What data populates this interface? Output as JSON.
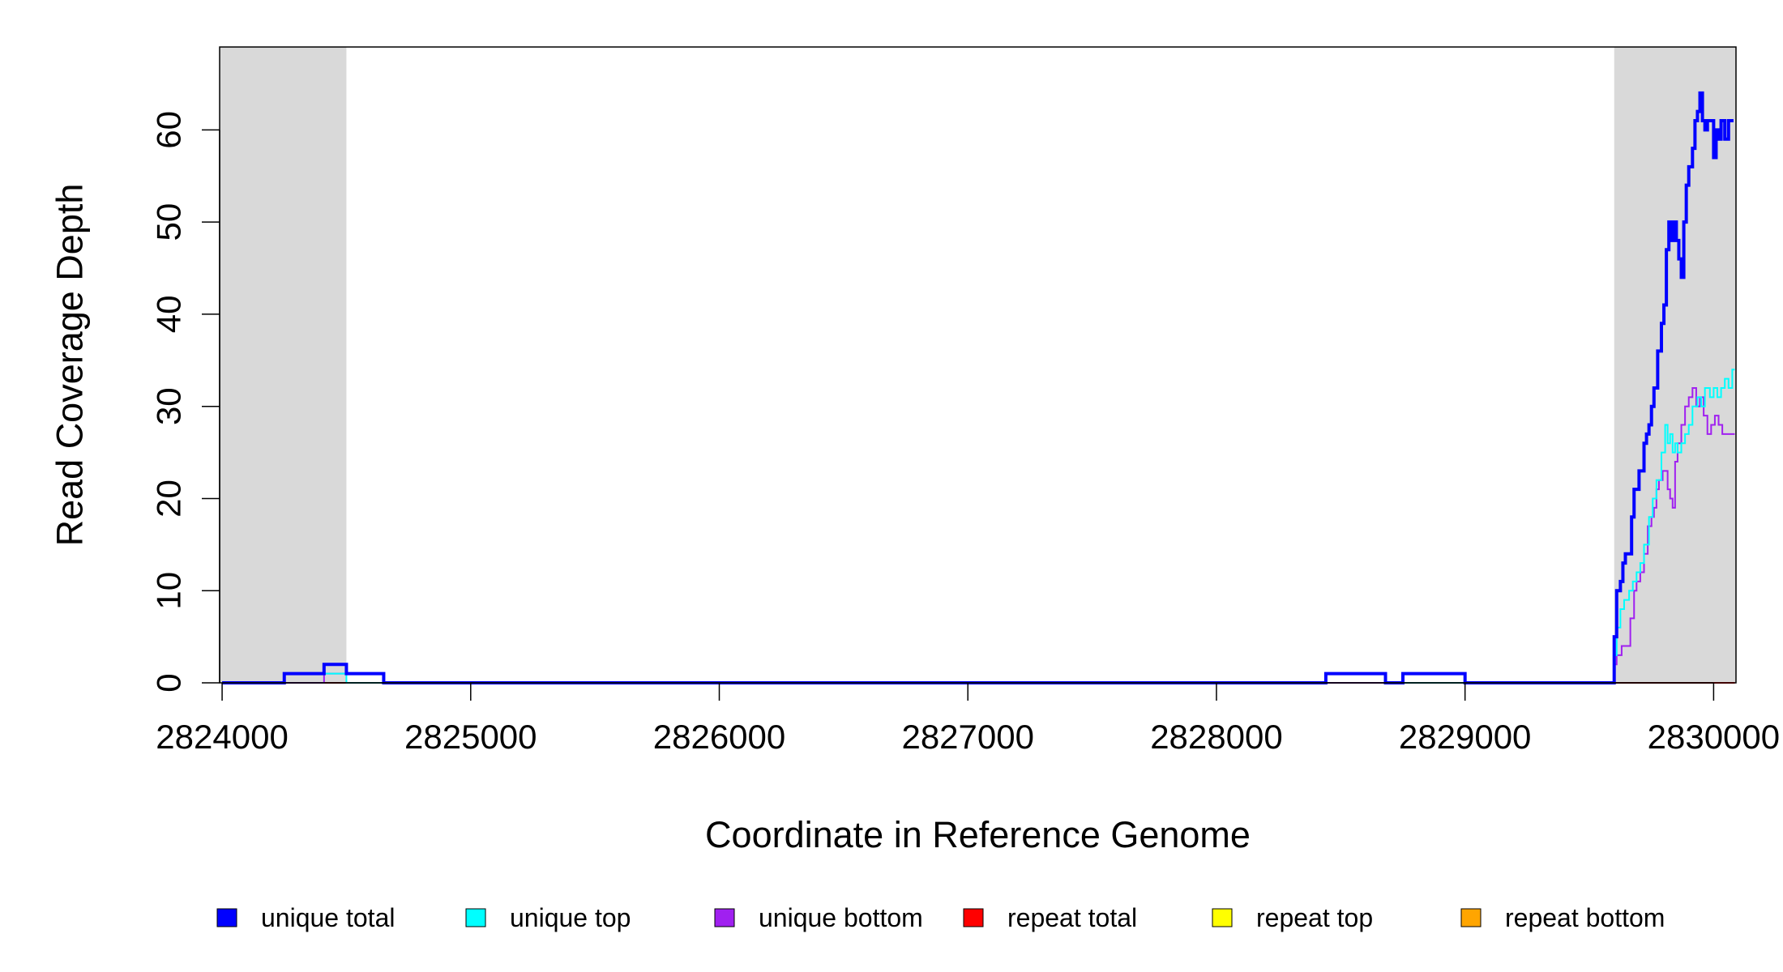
{
  "chart_data": {
    "type": "line",
    "title": "",
    "xlabel": "Coordinate in Reference Genome",
    "ylabel": "Read Coverage Depth",
    "xlim": [
      2823990,
      2830090
    ],
    "ylim": [
      0,
      69
    ],
    "x_ticks": [
      2824000,
      2825000,
      2826000,
      2827000,
      2828000,
      2829000,
      2830000
    ],
    "x_tick_labels": [
      "2824000",
      "2825000",
      "2826000",
      "2827000",
      "2828000",
      "2829000",
      "2830000"
    ],
    "y_ticks": [
      0,
      10,
      20,
      30,
      40,
      50,
      60
    ],
    "y_tick_labels": [
      "0",
      "10",
      "20",
      "30",
      "40",
      "50",
      "60"
    ],
    "shaded_regions": [
      [
        2823990,
        2824500
      ],
      [
        2829600,
        2830090
      ]
    ],
    "shaded_color": "#d9d9d9",
    "legend_position": "bottom",
    "series": [
      {
        "name": "unique total",
        "color": "#0000ff",
        "points": [
          [
            2824000,
            0
          ],
          [
            2824250,
            1
          ],
          [
            2824410,
            2
          ],
          [
            2824500,
            1
          ],
          [
            2824650,
            0
          ],
          [
            2828440,
            1
          ],
          [
            2828680,
            0
          ],
          [
            2828750,
            1
          ],
          [
            2829000,
            0
          ],
          [
            2829600,
            5
          ],
          [
            2829610,
            10
          ],
          [
            2829625,
            11
          ],
          [
            2829635,
            13
          ],
          [
            2829645,
            14
          ],
          [
            2829670,
            18
          ],
          [
            2829680,
            21
          ],
          [
            2829700,
            23
          ],
          [
            2829720,
            26
          ],
          [
            2829730,
            27
          ],
          [
            2829740,
            28
          ],
          [
            2829750,
            30
          ],
          [
            2829760,
            32
          ],
          [
            2829775,
            36
          ],
          [
            2829790,
            39
          ],
          [
            2829800,
            41
          ],
          [
            2829810,
            47
          ],
          [
            2829820,
            50
          ],
          [
            2829830,
            48
          ],
          [
            2829840,
            50
          ],
          [
            2829850,
            48
          ],
          [
            2829860,
            46
          ],
          [
            2829870,
            44
          ],
          [
            2829880,
            50
          ],
          [
            2829890,
            54
          ],
          [
            2829900,
            56
          ],
          [
            2829915,
            58
          ],
          [
            2829925,
            61
          ],
          [
            2829935,
            62
          ],
          [
            2829945,
            64
          ],
          [
            2829955,
            61
          ],
          [
            2829965,
            60
          ],
          [
            2829975,
            61
          ],
          [
            2829990,
            61
          ],
          [
            2830000,
            57
          ],
          [
            2830010,
            60
          ],
          [
            2830020,
            59
          ],
          [
            2830030,
            61
          ],
          [
            2830045,
            59
          ],
          [
            2830060,
            61
          ],
          [
            2830080,
            61
          ]
        ]
      },
      {
        "name": "unique top",
        "color": "#00ffff",
        "points": [
          [
            2824000,
            0
          ],
          [
            2824250,
            1
          ],
          [
            2824500,
            0
          ],
          [
            2828440,
            1
          ],
          [
            2828680,
            0
          ],
          [
            2829600,
            3
          ],
          [
            2829610,
            6
          ],
          [
            2829625,
            8
          ],
          [
            2829640,
            9
          ],
          [
            2829660,
            10
          ],
          [
            2829675,
            11
          ],
          [
            2829690,
            12
          ],
          [
            2829705,
            13
          ],
          [
            2829720,
            15
          ],
          [
            2829740,
            18
          ],
          [
            2829755,
            20
          ],
          [
            2829770,
            22
          ],
          [
            2829790,
            25
          ],
          [
            2829805,
            28
          ],
          [
            2829815,
            26
          ],
          [
            2829825,
            27
          ],
          [
            2829835,
            25
          ],
          [
            2829845,
            26
          ],
          [
            2829855,
            25
          ],
          [
            2829870,
            26
          ],
          [
            2829885,
            27
          ],
          [
            2829900,
            28
          ],
          [
            2829915,
            30
          ],
          [
            2829935,
            31
          ],
          [
            2829950,
            30
          ],
          [
            2829965,
            32
          ],
          [
            2829985,
            31
          ],
          [
            2830000,
            32
          ],
          [
            2830015,
            31
          ],
          [
            2830030,
            32
          ],
          [
            2830045,
            33
          ],
          [
            2830060,
            32
          ],
          [
            2830075,
            34
          ],
          [
            2830085,
            34
          ]
        ]
      },
      {
        "name": "unique bottom",
        "color": "#a020f0",
        "points": [
          [
            2824000,
            0
          ],
          [
            2824410,
            1
          ],
          [
            2824650,
            0
          ],
          [
            2828750,
            1
          ],
          [
            2829000,
            0
          ],
          [
            2829600,
            2
          ],
          [
            2829610,
            3
          ],
          [
            2829630,
            4
          ],
          [
            2829665,
            7
          ],
          [
            2829680,
            10
          ],
          [
            2829690,
            11
          ],
          [
            2829705,
            12
          ],
          [
            2829720,
            14
          ],
          [
            2829735,
            17
          ],
          [
            2829750,
            18
          ],
          [
            2829760,
            19
          ],
          [
            2829770,
            21
          ],
          [
            2829780,
            22
          ],
          [
            2829795,
            23
          ],
          [
            2829815,
            21
          ],
          [
            2829825,
            20
          ],
          [
            2829835,
            19
          ],
          [
            2829845,
            24
          ],
          [
            2829855,
            26
          ],
          [
            2829870,
            28
          ],
          [
            2829885,
            30
          ],
          [
            2829900,
            31
          ],
          [
            2829915,
            32
          ],
          [
            2829930,
            30
          ],
          [
            2829945,
            31
          ],
          [
            2829960,
            29
          ],
          [
            2829975,
            27
          ],
          [
            2829990,
            28
          ],
          [
            2830005,
            29
          ],
          [
            2830020,
            28
          ],
          [
            2830035,
            27
          ],
          [
            2830060,
            27
          ],
          [
            2830085,
            27
          ]
        ]
      },
      {
        "name": "repeat total",
        "color": "#ff0000",
        "points": [
          [
            2824000,
            0
          ],
          [
            2830085,
            0
          ]
        ]
      },
      {
        "name": "repeat top",
        "color": "#ffff00",
        "points": [
          [
            2824000,
            0
          ],
          [
            2830085,
            0
          ]
        ]
      },
      {
        "name": "repeat bottom",
        "color": "#ffa500",
        "points": [
          [
            2824000,
            0
          ],
          [
            2830085,
            0
          ]
        ]
      }
    ]
  }
}
